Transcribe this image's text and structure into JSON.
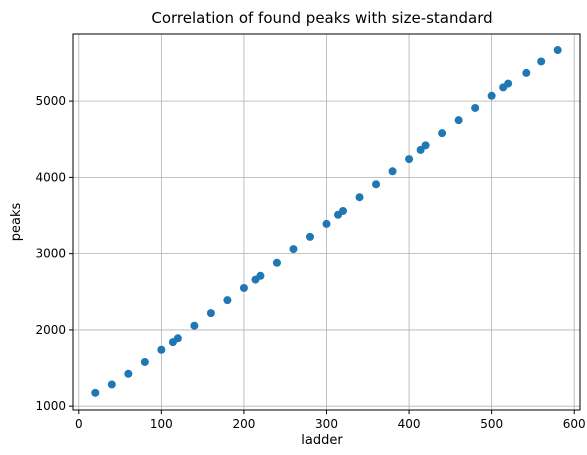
{
  "chart_data": {
    "type": "scatter",
    "title": "Correlation of found peaks with size-standard",
    "xlabel": "ladder",
    "ylabel": "peaks",
    "xlim": [
      -7,
      607
    ],
    "ylim": [
      950,
      5880
    ],
    "xticks": [
      0,
      100,
      200,
      300,
      400,
      500,
      600
    ],
    "yticks": [
      1000,
      2000,
      3000,
      4000,
      5000
    ],
    "grid": true,
    "marker_color": "#1f77b4",
    "points": [
      {
        "x": 20,
        "y": 1175
      },
      {
        "x": 40,
        "y": 1285
      },
      {
        "x": 60,
        "y": 1425
      },
      {
        "x": 80,
        "y": 1580
      },
      {
        "x": 100,
        "y": 1740
      },
      {
        "x": 114,
        "y": 1840
      },
      {
        "x": 120,
        "y": 1890
      },
      {
        "x": 140,
        "y": 2055
      },
      {
        "x": 160,
        "y": 2220
      },
      {
        "x": 180,
        "y": 2390
      },
      {
        "x": 200,
        "y": 2550
      },
      {
        "x": 214,
        "y": 2660
      },
      {
        "x": 220,
        "y": 2710
      },
      {
        "x": 240,
        "y": 2880
      },
      {
        "x": 260,
        "y": 3060
      },
      {
        "x": 280,
        "y": 3220
      },
      {
        "x": 300,
        "y": 3390
      },
      {
        "x": 314,
        "y": 3510
      },
      {
        "x": 320,
        "y": 3560
      },
      {
        "x": 340,
        "y": 3740
      },
      {
        "x": 360,
        "y": 3910
      },
      {
        "x": 380,
        "y": 4080
      },
      {
        "x": 400,
        "y": 4240
      },
      {
        "x": 414,
        "y": 4360
      },
      {
        "x": 420,
        "y": 4420
      },
      {
        "x": 440,
        "y": 4580
      },
      {
        "x": 460,
        "y": 4750
      },
      {
        "x": 480,
        "y": 4910
      },
      {
        "x": 500,
        "y": 5070
      },
      {
        "x": 514,
        "y": 5180
      },
      {
        "x": 520,
        "y": 5230
      },
      {
        "x": 542,
        "y": 5370
      },
      {
        "x": 560,
        "y": 5520
      },
      {
        "x": 580,
        "y": 5670
      }
    ]
  }
}
